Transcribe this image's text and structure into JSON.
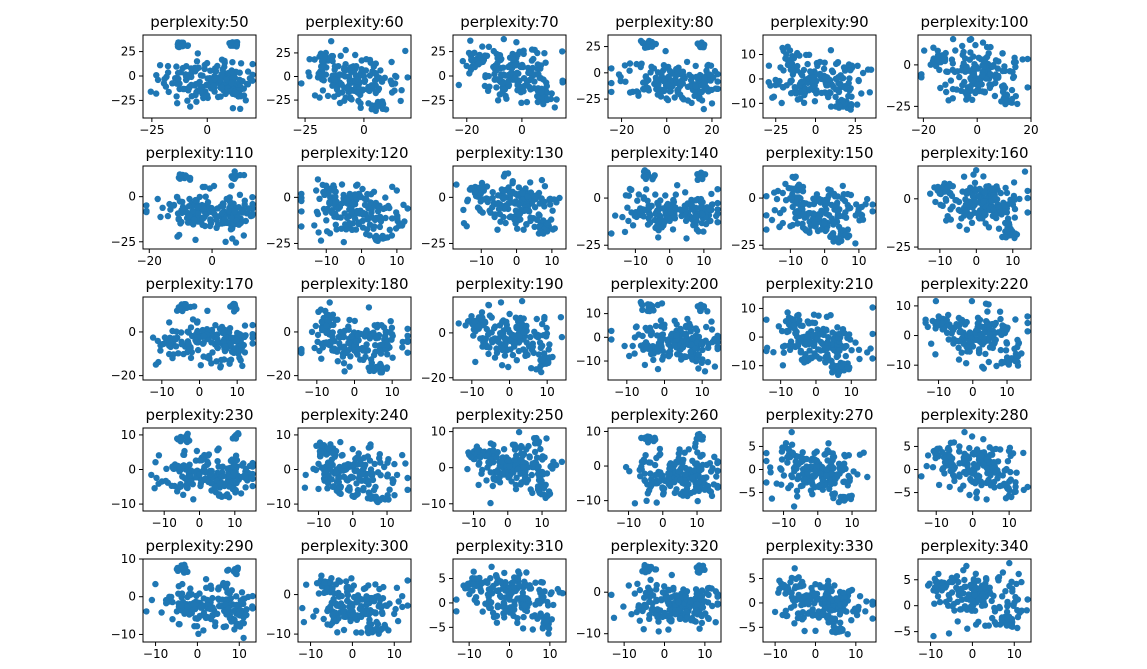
{
  "figure": {
    "colors": {
      "marker": "#1f77b4",
      "axes": "#000000",
      "background": "#ffffff"
    }
  },
  "chart_data": [
    {
      "type": "scatter",
      "title": "perplexity:50",
      "xticks": [
        -25,
        0
      ],
      "yticks": [
        -25,
        0,
        25
      ],
      "xlim": [
        -29,
        22
      ],
      "ylim": [
        -43,
        42
      ],
      "grid": false
    },
    {
      "type": "scatter",
      "title": "perplexity:60",
      "xticks": [
        -25,
        0
      ],
      "yticks": [
        -25,
        0,
        25
      ],
      "xlim": [
        -28,
        20
      ],
      "ylim": [
        -44,
        44
      ],
      "grid": false
    },
    {
      "type": "scatter",
      "title": "perplexity:70",
      "xticks": [
        -20,
        0
      ],
      "yticks": [
        -25,
        0,
        25
      ],
      "xlim": [
        -25,
        16
      ],
      "ylim": [
        -43,
        42
      ],
      "grid": false
    },
    {
      "type": "scatter",
      "title": "perplexity:80",
      "xticks": [
        -20,
        0,
        20
      ],
      "yticks": [
        -25,
        0,
        25
      ],
      "xlim": [
        -26,
        24
      ],
      "ylim": [
        -43,
        36
      ],
      "grid": false
    },
    {
      "type": "scatter",
      "title": "perplexity:90",
      "xticks": [
        -25,
        0,
        25
      ],
      "yticks": [
        -10,
        0,
        10
      ],
      "xlim": [
        -33,
        38
      ],
      "ylim": [
        -16,
        18
      ],
      "grid": false
    },
    {
      "type": "scatter",
      "title": "perplexity:100",
      "xticks": [
        -20,
        0,
        20
      ],
      "yticks": [
        -25,
        0
      ],
      "xlim": [
        -22,
        20
      ],
      "ylim": [
        -32,
        18
      ],
      "grid": false
    },
    {
      "type": "scatter",
      "title": "perplexity:110",
      "xticks": [
        -20,
        0
      ],
      "yticks": [
        -25,
        0
      ],
      "xlim": [
        -22,
        14
      ],
      "ylim": [
        -29,
        17
      ],
      "grid": false
    },
    {
      "type": "scatter",
      "title": "perplexity:120",
      "xticks": [
        -10,
        0,
        10
      ],
      "yticks": [
        -25,
        0
      ],
      "xlim": [
        -18,
        14
      ],
      "ylim": [
        -28,
        17
      ],
      "grid": false
    },
    {
      "type": "scatter",
      "title": "perplexity:130",
      "xticks": [
        -10,
        0,
        10
      ],
      "yticks": [
        -25,
        0
      ],
      "xlim": [
        -18,
        14
      ],
      "ylim": [
        -28,
        17
      ],
      "grid": false
    },
    {
      "type": "scatter",
      "title": "perplexity:140",
      "xticks": [
        -10,
        0,
        10
      ],
      "yticks": [
        -25,
        0
      ],
      "xlim": [
        -18,
        15
      ],
      "ylim": [
        -27,
        17
      ],
      "grid": false
    },
    {
      "type": "scatter",
      "title": "perplexity:150",
      "xticks": [
        -10,
        0,
        10
      ],
      "yticks": [
        -25,
        0
      ],
      "xlim": [
        -18,
        15
      ],
      "ylim": [
        -27,
        17
      ],
      "grid": false
    },
    {
      "type": "scatter",
      "title": "perplexity:160",
      "xticks": [
        -10,
        0,
        10
      ],
      "yticks": [
        -25,
        0
      ],
      "xlim": [
        -16,
        15
      ],
      "ylim": [
        -26,
        17
      ],
      "grid": false
    },
    {
      "type": "scatter",
      "title": "perplexity:170",
      "xticks": [
        -10,
        0,
        10
      ],
      "yticks": [
        -20,
        0
      ],
      "xlim": [
        -15,
        15
      ],
      "ylim": [
        -22,
        16
      ],
      "grid": false
    },
    {
      "type": "scatter",
      "title": "perplexity:180",
      "xticks": [
        -10,
        0,
        10
      ],
      "yticks": [
        -20,
        0
      ],
      "xlim": [
        -15,
        15
      ],
      "ylim": [
        -22,
        16
      ],
      "grid": false
    },
    {
      "type": "scatter",
      "title": "perplexity:190",
      "xticks": [
        -10,
        0,
        10
      ],
      "yticks": [
        -20,
        0
      ],
      "xlim": [
        -15,
        15
      ],
      "ylim": [
        -21,
        16
      ],
      "grid": false
    },
    {
      "type": "scatter",
      "title": "perplexity:200",
      "xticks": [
        -10,
        0,
        10
      ],
      "yticks": [
        -10,
        0,
        10
      ],
      "xlim": [
        -15,
        15
      ],
      "ylim": [
        -18,
        17
      ],
      "grid": false
    },
    {
      "type": "scatter",
      "title": "perplexity:210",
      "xticks": [
        -10,
        0,
        10
      ],
      "yticks": [
        -10,
        0,
        10
      ],
      "xlim": [
        -15,
        17
      ],
      "ylim": [
        -15,
        14
      ],
      "grid": false
    },
    {
      "type": "scatter",
      "title": "perplexity:220",
      "xticks": [
        -10,
        0,
        10
      ],
      "yticks": [
        -10,
        0,
        10
      ],
      "xlim": [
        -16,
        17
      ],
      "ylim": [
        -15,
        13
      ],
      "grid": false
    },
    {
      "type": "scatter",
      "title": "perplexity:230",
      "xticks": [
        -10,
        0,
        10
      ],
      "yticks": [
        -10,
        0,
        10
      ],
      "xlim": [
        -16,
        16
      ],
      "ylim": [
        -12,
        12
      ],
      "grid": false
    },
    {
      "type": "scatter",
      "title": "perplexity:240",
      "xticks": [
        -10,
        0,
        10
      ],
      "yticks": [
        -10,
        0,
        10
      ],
      "xlim": [
        -16,
        17
      ],
      "ylim": [
        -12,
        12
      ],
      "grid": false
    },
    {
      "type": "scatter",
      "title": "perplexity:250",
      "xticks": [
        -10,
        0,
        10
      ],
      "yticks": [
        -10,
        0,
        10
      ],
      "xlim": [
        -16,
        17
      ],
      "ylim": [
        -12,
        11
      ],
      "grid": false
    },
    {
      "type": "scatter",
      "title": "perplexity:260",
      "xticks": [
        -10,
        0,
        10
      ],
      "yticks": [
        -10,
        0,
        10
      ],
      "xlim": [
        -16,
        17
      ],
      "ylim": [
        -13,
        11
      ],
      "grid": false
    },
    {
      "type": "scatter",
      "title": "perplexity:270",
      "xticks": [
        -10,
        0,
        10
      ],
      "yticks": [
        -5,
        0,
        5
      ],
      "xlim": [
        -16,
        17
      ],
      "ylim": [
        -9,
        9
      ],
      "grid": false
    },
    {
      "type": "scatter",
      "title": "perplexity:280",
      "xticks": [
        -10,
        0,
        10
      ],
      "yticks": [
        -5,
        0,
        5
      ],
      "xlim": [
        -15,
        16
      ],
      "ylim": [
        -9,
        9
      ],
      "grid": false
    },
    {
      "type": "scatter",
      "title": "perplexity:290",
      "xticks": [
        -10,
        0,
        10
      ],
      "yticks": [
        -10,
        0,
        10
      ],
      "xlim": [
        -13,
        14
      ],
      "ylim": [
        -12,
        10
      ],
      "grid": false
    },
    {
      "type": "scatter",
      "title": "perplexity:300",
      "xticks": [
        -10,
        0,
        10
      ],
      "yticks": [
        -10,
        0
      ],
      "xlim": [
        -13,
        14
      ],
      "ylim": [
        -12,
        9
      ],
      "grid": false
    },
    {
      "type": "scatter",
      "title": "perplexity:310",
      "xticks": [
        -10,
        0,
        10
      ],
      "yticks": [
        -5,
        0,
        5
      ],
      "xlim": [
        -14,
        14
      ],
      "ylim": [
        -8,
        9
      ],
      "grid": false
    },
    {
      "type": "scatter",
      "title": "perplexity:320",
      "xticks": [
        -10,
        0,
        10
      ],
      "yticks": [
        -10,
        0
      ],
      "xlim": [
        -14,
        14
      ],
      "ylim": [
        -12,
        8
      ],
      "grid": false
    },
    {
      "type": "scatter",
      "title": "perplexity:330",
      "xticks": [
        -10,
        0,
        10
      ],
      "yticks": [
        -5,
        0,
        5
      ],
      "xlim": [
        -13,
        15
      ],
      "ylim": [
        -8,
        9
      ],
      "grid": false
    },
    {
      "type": "scatter",
      "title": "perplexity:340",
      "xticks": [
        -10,
        0,
        10
      ],
      "yticks": [
        -5,
        0,
        5
      ],
      "xlim": [
        -13,
        14
      ],
      "ylim": [
        -7,
        9
      ],
      "grid": false
    }
  ]
}
